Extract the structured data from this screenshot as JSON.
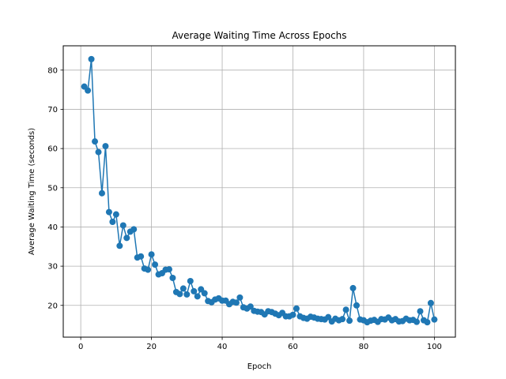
{
  "chart_data": {
    "type": "line",
    "title": "Average Waiting Time Across Epochs",
    "xlabel": "Epoch",
    "ylabel": "Average Waiting Time (seconds)",
    "xlim": [
      -4.95,
      105.95
    ],
    "ylim": [
      11.9,
      86.2
    ],
    "xticks": [
      0,
      20,
      40,
      60,
      80,
      100
    ],
    "yticks": [
      20,
      30,
      40,
      50,
      60,
      70,
      80
    ],
    "grid": true,
    "marker": "circle",
    "series": [
      {
        "color": "#1f77b4",
        "x": [
          1,
          2,
          3,
          4,
          5,
          6,
          7,
          8,
          9,
          10,
          11,
          12,
          13,
          14,
          15,
          16,
          17,
          18,
          19,
          20,
          21,
          22,
          23,
          24,
          25,
          26,
          27,
          28,
          29,
          30,
          31,
          32,
          33,
          34,
          35,
          36,
          37,
          38,
          39,
          40,
          41,
          42,
          43,
          44,
          45,
          46,
          47,
          48,
          49,
          50,
          51,
          52,
          53,
          54,
          55,
          56,
          57,
          58,
          59,
          60,
          61,
          62,
          63,
          64,
          65,
          66,
          67,
          68,
          69,
          70,
          71,
          72,
          73,
          74,
          75,
          76,
          77,
          78,
          79,
          80,
          81,
          82,
          83,
          84,
          85,
          86,
          87,
          88,
          89,
          90,
          91,
          92,
          93,
          94,
          95,
          96,
          97,
          98,
          99,
          100
        ],
        "y": [
          75.8,
          74.8,
          82.8,
          61.8,
          59.1,
          48.6,
          60.6,
          43.8,
          41.3,
          43.2,
          35.2,
          40.4,
          37.2,
          38.8,
          39.4,
          32.2,
          32.5,
          29.4,
          29.1,
          33.0,
          30.4,
          27.9,
          28.2,
          29.1,
          29.2,
          27.0,
          23.4,
          22.9,
          24.3,
          22.8,
          26.2,
          23.6,
          22.3,
          24.1,
          23.1,
          21.1,
          20.8,
          21.5,
          21.8,
          21.2,
          21.2,
          20.3,
          20.9,
          20.7,
          22.0,
          19.5,
          19.2,
          19.7,
          18.6,
          18.4,
          18.3,
          17.7,
          18.5,
          18.3,
          17.9,
          17.5,
          18.1,
          17.2,
          17.2,
          17.6,
          19.2,
          17.2,
          16.8,
          16.6,
          17.1,
          16.9,
          16.6,
          16.5,
          16.4,
          17.0,
          15.9,
          16.6,
          16.2,
          16.5,
          18.9,
          16.1,
          24.4,
          20.0,
          16.4,
          16.2,
          15.7,
          16.1,
          16.3,
          15.8,
          16.5,
          16.4,
          16.9,
          16.2,
          16.5,
          15.9,
          16.0,
          16.6,
          16.2,
          16.3,
          15.8,
          18.5,
          16.2,
          15.7,
          20.6,
          16.4
        ]
      }
    ]
  }
}
